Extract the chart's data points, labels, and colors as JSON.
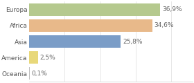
{
  "categories": [
    "Europa",
    "Africa",
    "Asia",
    "America",
    "Oceania"
  ],
  "values": [
    36.9,
    34.6,
    25.8,
    2.5,
    0.1
  ],
  "bar_colors": [
    "#b5c98e",
    "#e8b98a",
    "#7b9dc7",
    "#e8d87a",
    "#c0c0c0"
  ],
  "labels": [
    "36,9%",
    "34,6%",
    "25,8%",
    "2,5%",
    "0,1%"
  ],
  "xlim": [
    0,
    46
  ],
  "background_color": "#ffffff",
  "label_fontsize": 6.5,
  "tick_fontsize": 6.5,
  "bar_height": 0.78
}
